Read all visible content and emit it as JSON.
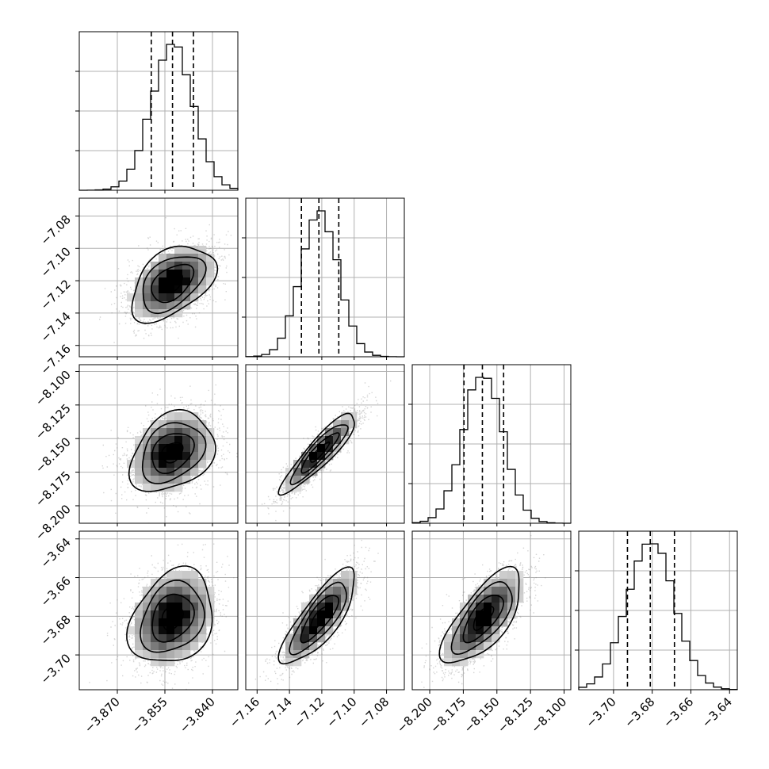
{
  "chart_data": {
    "type": "corner",
    "grid": true,
    "parameters": [
      {
        "range": [
          -3.882,
          -3.832
        ],
        "ticks": [
          -3.87,
          -3.855,
          -3.84
        ],
        "tick_labels": [
          "−3.870",
          "−3.855",
          "−3.840"
        ],
        "quantiles": [
          -3.8593,
          -3.8526,
          -3.846
        ],
        "mean": -3.8527,
        "sd": 0.0066
      },
      {
        "range": [
          -7.167,
          -7.069
        ],
        "ticks": [
          -7.16,
          -7.14,
          -7.12,
          -7.1,
          -7.08
        ],
        "tick_labels": [
          "−7.16",
          "−7.14",
          "−7.12",
          "−7.10",
          "−7.08"
        ],
        "quantiles": [
          -7.1326,
          -7.1218,
          -7.1095
        ],
        "mean": -7.1214,
        "sd": 0.0116
      },
      {
        "range": [
          -8.213,
          -8.095
        ],
        "ticks": [
          -8.2,
          -8.175,
          -8.15,
          -8.125,
          -8.1
        ],
        "tick_labels": [
          "−8.200",
          "−8.175",
          "−8.150",
          "−8.125",
          "−8.100"
        ],
        "quantiles": [
          -8.1745,
          -8.1608,
          -8.145
        ],
        "mean": -8.1603,
        "sd": 0.0148
      },
      {
        "range": [
          -3.718,
          -3.636
        ],
        "ticks": [
          -3.7,
          -3.68,
          -3.66,
          -3.64
        ],
        "tick_labels": [
          "−3.70",
          "−3.68",
          "−3.66",
          "−3.64"
        ],
        "quantiles": [
          -3.6928,
          -3.681,
          -3.6685
        ],
        "mean": -3.6808,
        "sd": 0.0122
      }
    ],
    "correlations": [
      {
        "pair": [
          0,
          1
        ],
        "rho": 0.45
      },
      {
        "pair": [
          0,
          2
        ],
        "rho": 0.3
      },
      {
        "pair": [
          1,
          2
        ],
        "rho": 0.9
      },
      {
        "pair": [
          0,
          3
        ],
        "rho": 0.25
      },
      {
        "pair": [
          1,
          3
        ],
        "rho": 0.8
      },
      {
        "pair": [
          2,
          3
        ],
        "rho": 0.7
      }
    ],
    "contour_levels_sigma": [
      0.5,
      1.0,
      1.5,
      2.0
    ],
    "colors": {
      "line": "#000000",
      "points": "#888888",
      "grid": "#b0b0b0",
      "density": "#000000"
    }
  }
}
